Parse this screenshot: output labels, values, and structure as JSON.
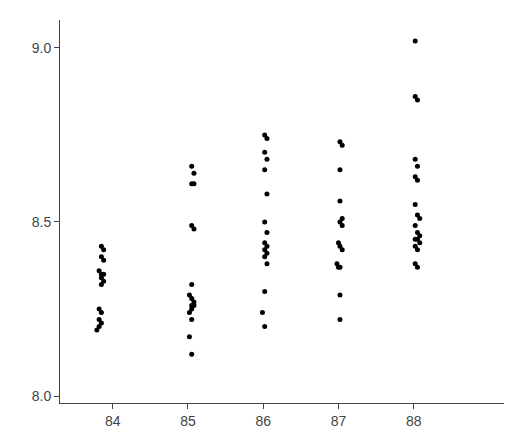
{
  "chart_data": {
    "type": "scatter",
    "x": [
      83.85,
      83.88,
      83.85,
      83.88,
      83.82,
      83.85,
      83.88,
      83.85,
      83.88,
      83.85,
      83.82,
      83.85,
      83.82,
      83.85,
      83.82,
      83.79,
      85.05,
      85.08,
      85.05,
      85.08,
      85.05,
      85.08,
      85.05,
      85.02,
      85.05,
      85.08,
      85.05,
      85.08,
      85.05,
      85.02,
      85.05,
      85.02,
      85.05,
      86.02,
      86.05,
      86.02,
      86.05,
      86.02,
      86.05,
      86.02,
      86.05,
      86.02,
      86.05,
      86.02,
      86.05,
      86.02,
      86.05,
      86.02,
      85.99,
      86.02,
      87.02,
      87.05,
      87.02,
      87.02,
      87.05,
      87.02,
      87.05,
      87.0,
      87.02,
      87.05,
      86.98,
      87.0,
      87.02,
      87.02,
      87.02,
      88.02,
      88.02,
      88.05,
      88.02,
      88.05,
      88.02,
      88.05,
      88.02,
      88.05,
      88.08,
      88.02,
      88.05,
      88.08,
      88.02,
      88.05,
      88.08,
      88.02,
      88.05,
      88.02,
      88.05
    ],
    "values": [
      8.43,
      8.42,
      8.4,
      8.39,
      8.36,
      8.35,
      8.35,
      8.34,
      8.33,
      8.32,
      8.25,
      8.24,
      8.22,
      8.21,
      8.2,
      8.19,
      8.66,
      8.64,
      8.61,
      8.61,
      8.49,
      8.48,
      8.32,
      8.29,
      8.28,
      8.27,
      8.26,
      8.26,
      8.25,
      8.24,
      8.22,
      8.17,
      8.12,
      8.75,
      8.74,
      8.7,
      8.68,
      8.65,
      8.58,
      8.5,
      8.47,
      8.44,
      8.43,
      8.42,
      8.41,
      8.4,
      8.38,
      8.3,
      8.24,
      8.2,
      8.73,
      8.72,
      8.65,
      8.56,
      8.51,
      8.5,
      8.49,
      8.44,
      8.43,
      8.42,
      8.38,
      8.37,
      8.37,
      8.29,
      8.22,
      9.02,
      8.86,
      8.85,
      8.68,
      8.66,
      8.63,
      8.62,
      8.55,
      8.52,
      8.51,
      8.49,
      8.47,
      8.46,
      8.45,
      8.45,
      8.44,
      8.43,
      8.42,
      8.38,
      8.37
    ],
    "color": "#000000",
    "marker": "circle",
    "xlim": [
      83.3,
      89.2
    ],
    "ylim": [
      7.98,
      9.08
    ],
    "xticks": [
      84,
      85,
      86,
      87,
      88
    ],
    "yticks": [
      {
        "value": 8.0,
        "label": "8.0"
      },
      8.5,
      {
        "value": 9.0,
        "label": "9.0"
      }
    ],
    "grid": false
  }
}
